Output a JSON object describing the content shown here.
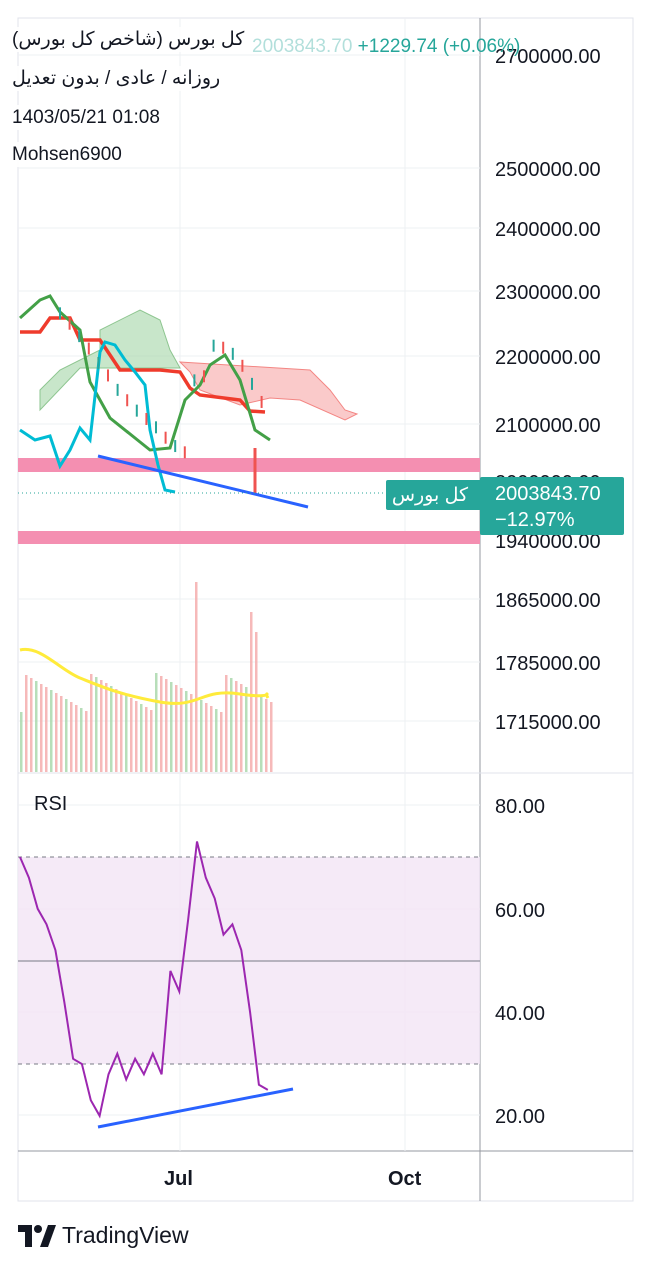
{
  "header": {
    "symbol_title": "کل بورس (شاخص کل بورس)",
    "settings_line": "روزانه / عادی / بدون تعدیل",
    "change_text": "+1229.74 (+0.06%)",
    "ghost_price": "2003843.70",
    "date_time": "1403/05/21 01:08",
    "author": "Mohsen6900"
  },
  "price_tag": {
    "symbol_label": "کل بورس",
    "last_price": "2003843.70",
    "percent": "−12.97%"
  },
  "colors": {
    "up": "#26a69a",
    "down": "#ef5350",
    "tenkan": "#ef3b2c",
    "kijun_green": "#43a047",
    "lagging": "#00bcd4",
    "support_band": "#f48fb1",
    "trendline": "#2962ff",
    "rsi_line": "#9c27b0",
    "volume_ma": "#ffeb3b"
  },
  "price_axis": {
    "ticks": [
      "2700000.00",
      "2500000.00",
      "2400000.00",
      "2300000.00",
      "2200000.00",
      "2100000.00",
      "1940000.00",
      "1865000.00",
      "1785000.00",
      "1715000.00"
    ],
    "hidden_tick": "2000000.00"
  },
  "rsi_panel": {
    "title": "RSI",
    "ticks": [
      "80.00",
      "60.00",
      "40.00",
      "20.00"
    ]
  },
  "time_axis": {
    "ticks": [
      "Jul",
      "Oct"
    ]
  },
  "footer": {
    "brand": "TradingView"
  },
  "chart_data": [
    {
      "type": "line",
      "title": "کل بورس (شاخص کل بورس)",
      "series": [
        {
          "name": "",
          "x": [
            0,
            10,
            20,
            30,
            40,
            50,
            60,
            70,
            80,
            90,
            100,
            110,
            120,
            130,
            140,
            150,
            160,
            170,
            180,
            190,
            200,
            210,
            220,
            230,
            240
          ],
          "values": [
            2320000,
            2300000,
            2270000,
            2240000,
            2200000,
            2170000,
            2130000,
            2110000,
            2090000,
            2080000,
            2070000,
            2050000,
            2040000,
            2040000,
            2060000,
            2080000,
            2230000,
            2220000,
            2190000,
            2200000,
            2180000,
            2160000,
            2130000,
            2060000,
            2003843.7
          ]
        }
      ],
      "support_zones": [
        [
          2025000,
          2045000
        ],
        [
          1935000,
          1955000
        ]
      ],
      "last_value": 2003843.7,
      "percent_change": "−12.97%"
    },
    {
      "type": "line",
      "title": "RSI",
      "ylim": [
        15,
        85
      ],
      "bands": [
        30,
        50,
        70
      ],
      "series": [
        {
          "name": "RSI",
          "x": [
            0,
            3,
            6,
            9,
            12,
            15,
            18,
            21,
            24,
            27,
            30,
            33,
            36,
            39,
            42,
            45,
            48,
            51,
            54,
            57,
            60,
            63,
            66,
            69,
            72,
            75,
            78,
            81,
            84
          ],
          "values": [
            70,
            66,
            60,
            57,
            52,
            42,
            31,
            30,
            23,
            20,
            28,
            32,
            27,
            31,
            28,
            32,
            28,
            48,
            44,
            58,
            73,
            66,
            62,
            55,
            57,
            52,
            40,
            26,
            25
          ]
        }
      ]
    }
  ]
}
